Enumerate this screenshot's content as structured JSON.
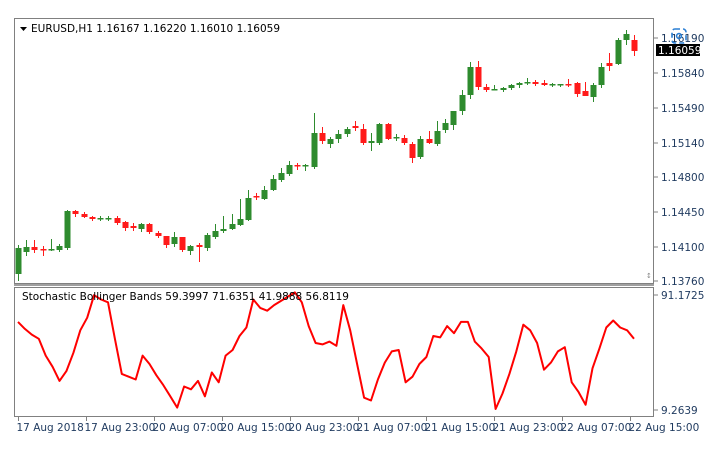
{
  "header": {
    "symbol": "EURUSD,H1",
    "open": "1.16167",
    "high": "1.16220",
    "low": "1.16010",
    "close": "1.16059",
    "label": "EURUSD,H1  1.16167 1.16220 1.16010 1.16059"
  },
  "indicator": {
    "label": "Stochastic Bollinger Bands 59.3997 71.6351 41.9888 56.8119",
    "name": "Stochastic Bollinger Bands",
    "values": [
      "59.3997",
      "71.6351",
      "41.9888",
      "56.8119"
    ],
    "axis_top": "91.1725",
    "axis_bottom": "9.2639"
  },
  "price_axis": {
    "ticks": [
      "1.16190",
      "1.15840",
      "1.15490",
      "1.15140",
      "1.14800",
      "1.14450",
      "1.14100",
      "1.13760"
    ],
    "current_price": "1.16059"
  },
  "time_axis": {
    "ticks": [
      "17 Aug 2018",
      "17 Aug 23:00",
      "20 Aug 07:00",
      "20 Aug 15:00",
      "20 Aug 23:00",
      "21 Aug 07:00",
      "21 Aug 15:00",
      "21 Aug 23:00",
      "22 Aug 07:00",
      "22 Aug 15:00"
    ]
  },
  "colors": {
    "bull": "#2e8b2e",
    "bear": "#ff1a1a",
    "indicator_line": "#ff0000",
    "axis_text": "#1f3a5f",
    "frame": "#808080",
    "price_tag_bg": "#000000",
    "price_tag_fg": "#ffffff"
  },
  "chart_data": [
    {
      "type": "candlestick",
      "title": "EURUSD,H1  1.16167 1.16220 1.16010 1.16059",
      "xlabel": "",
      "ylabel": "",
      "ylim": [
        1.1376,
        1.1619
      ],
      "grid": false,
      "x_tick_labels": [
        "17 Aug 2018",
        "17 Aug 23:00",
        "20 Aug 07:00",
        "20 Aug 15:00",
        "20 Aug 23:00",
        "21 Aug 07:00",
        "21 Aug 15:00",
        "21 Aug 23:00",
        "22 Aug 07:00",
        "22 Aug 15:00"
      ],
      "y_tick_labels": [
        "1.16190",
        "1.15840",
        "1.15490",
        "1.15140",
        "1.14800",
        "1.14450",
        "1.14100",
        "1.13760"
      ],
      "candles": [
        {
          "o": 1.1383,
          "h": 1.1412,
          "l": 1.1376,
          "c": 1.1409
        },
        {
          "o": 1.1405,
          "h": 1.1417,
          "l": 1.1401,
          "c": 1.141
        },
        {
          "o": 1.141,
          "h": 1.1417,
          "l": 1.1404,
          "c": 1.1407
        },
        {
          "o": 1.1408,
          "h": 1.1411,
          "l": 1.1401,
          "c": 1.1407
        },
        {
          "o": 1.1408,
          "h": 1.1418,
          "l": 1.1406,
          "c": 1.1408
        },
        {
          "o": 1.1407,
          "h": 1.1413,
          "l": 1.1405,
          "c": 1.1411
        },
        {
          "o": 1.1409,
          "h": 1.1447,
          "l": 1.1407,
          "c": 1.1446
        },
        {
          "o": 1.1446,
          "h": 1.1447,
          "l": 1.144,
          "c": 1.1443
        },
        {
          "o": 1.1443,
          "h": 1.1445,
          "l": 1.1439,
          "c": 1.144
        },
        {
          "o": 1.144,
          "h": 1.1441,
          "l": 1.1436,
          "c": 1.1438
        },
        {
          "o": 1.1438,
          "h": 1.1441,
          "l": 1.1436,
          "c": 1.1439
        },
        {
          "o": 1.1439,
          "h": 1.1441,
          "l": 1.1436,
          "c": 1.1439
        },
        {
          "o": 1.1439,
          "h": 1.1441,
          "l": 1.1432,
          "c": 1.1434
        },
        {
          "o": 1.1435,
          "h": 1.1436,
          "l": 1.1426,
          "c": 1.1429
        },
        {
          "o": 1.1431,
          "h": 1.1434,
          "l": 1.1426,
          "c": 1.1429
        },
        {
          "o": 1.1428,
          "h": 1.1434,
          "l": 1.1425,
          "c": 1.1433
        },
        {
          "o": 1.1433,
          "h": 1.1434,
          "l": 1.1423,
          "c": 1.1425
        },
        {
          "o": 1.1424,
          "h": 1.1426,
          "l": 1.1419,
          "c": 1.1421
        },
        {
          "o": 1.1421,
          "h": 1.1421,
          "l": 1.1409,
          "c": 1.1412
        },
        {
          "o": 1.1413,
          "h": 1.1425,
          "l": 1.141,
          "c": 1.142
        },
        {
          "o": 1.142,
          "h": 1.142,
          "l": 1.1405,
          "c": 1.1407
        },
        {
          "o": 1.1406,
          "h": 1.1412,
          "l": 1.1402,
          "c": 1.1411
        },
        {
          "o": 1.1412,
          "h": 1.1414,
          "l": 1.1395,
          "c": 1.141
        },
        {
          "o": 1.1409,
          "h": 1.1424,
          "l": 1.1406,
          "c": 1.1422
        },
        {
          "o": 1.142,
          "h": 1.1433,
          "l": 1.1418,
          "c": 1.1426
        },
        {
          "o": 1.1426,
          "h": 1.1441,
          "l": 1.1424,
          "c": 1.1428
        },
        {
          "o": 1.1428,
          "h": 1.1443,
          "l": 1.1427,
          "c": 1.1433
        },
        {
          "o": 1.1432,
          "h": 1.1458,
          "l": 1.1431,
          "c": 1.1438
        },
        {
          "o": 1.1437,
          "h": 1.1467,
          "l": 1.1436,
          "c": 1.1459
        },
        {
          "o": 1.1461,
          "h": 1.1464,
          "l": 1.1457,
          "c": 1.146
        },
        {
          "o": 1.1458,
          "h": 1.1471,
          "l": 1.1457,
          "c": 1.1467
        },
        {
          "o": 1.1467,
          "h": 1.1482,
          "l": 1.1466,
          "c": 1.1478
        },
        {
          "o": 1.1477,
          "h": 1.1489,
          "l": 1.1475,
          "c": 1.1484
        },
        {
          "o": 1.1483,
          "h": 1.1496,
          "l": 1.1481,
          "c": 1.1492
        },
        {
          "o": 1.1492,
          "h": 1.1494,
          "l": 1.1487,
          "c": 1.1491
        },
        {
          "o": 1.1491,
          "h": 1.1493,
          "l": 1.1486,
          "c": 1.1492
        },
        {
          "o": 1.149,
          "h": 1.1544,
          "l": 1.1488,
          "c": 1.1524
        },
        {
          "o": 1.1524,
          "h": 1.153,
          "l": 1.1513,
          "c": 1.1516
        },
        {
          "o": 1.1513,
          "h": 1.152,
          "l": 1.1509,
          "c": 1.1518
        },
        {
          "o": 1.1518,
          "h": 1.1527,
          "l": 1.1514,
          "c": 1.1523
        },
        {
          "o": 1.1523,
          "h": 1.153,
          "l": 1.152,
          "c": 1.1528
        },
        {
          "o": 1.1531,
          "h": 1.1536,
          "l": 1.1526,
          "c": 1.1529
        },
        {
          "o": 1.1528,
          "h": 1.1533,
          "l": 1.1512,
          "c": 1.1514
        },
        {
          "o": 1.1514,
          "h": 1.1524,
          "l": 1.1506,
          "c": 1.1516
        },
        {
          "o": 1.1514,
          "h": 1.1534,
          "l": 1.1512,
          "c": 1.1533
        },
        {
          "o": 1.1533,
          "h": 1.1534,
          "l": 1.1517,
          "c": 1.1518
        },
        {
          "o": 1.1519,
          "h": 1.1523,
          "l": 1.1516,
          "c": 1.152
        },
        {
          "o": 1.1519,
          "h": 1.1522,
          "l": 1.1512,
          "c": 1.1514
        },
        {
          "o": 1.1513,
          "h": 1.1515,
          "l": 1.1494,
          "c": 1.1499
        },
        {
          "o": 1.15,
          "h": 1.1521,
          "l": 1.1498,
          "c": 1.1518
        },
        {
          "o": 1.1518,
          "h": 1.1526,
          "l": 1.1513,
          "c": 1.1514
        },
        {
          "o": 1.1513,
          "h": 1.1536,
          "l": 1.1511,
          "c": 1.1526
        },
        {
          "o": 1.1527,
          "h": 1.1538,
          "l": 1.1524,
          "c": 1.1534
        },
        {
          "o": 1.1532,
          "h": 1.1544,
          "l": 1.1527,
          "c": 1.1546
        },
        {
          "o": 1.1546,
          "h": 1.1567,
          "l": 1.1542,
          "c": 1.1562
        },
        {
          "o": 1.1562,
          "h": 1.1595,
          "l": 1.1558,
          "c": 1.159
        },
        {
          "o": 1.159,
          "h": 1.1596,
          "l": 1.1567,
          "c": 1.157
        },
        {
          "o": 1.157,
          "h": 1.1573,
          "l": 1.1565,
          "c": 1.1567
        },
        {
          "o": 1.1568,
          "h": 1.1572,
          "l": 1.1567,
          "c": 1.1568
        },
        {
          "o": 1.1567,
          "h": 1.157,
          "l": 1.1565,
          "c": 1.1569
        },
        {
          "o": 1.1569,
          "h": 1.1573,
          "l": 1.1567,
          "c": 1.1572
        },
        {
          "o": 1.1572,
          "h": 1.1575,
          "l": 1.1569,
          "c": 1.1574
        },
        {
          "o": 1.1574,
          "h": 1.1579,
          "l": 1.1572,
          "c": 1.1575
        },
        {
          "o": 1.1575,
          "h": 1.1577,
          "l": 1.1571,
          "c": 1.1573
        },
        {
          "o": 1.1574,
          "h": 1.1577,
          "l": 1.1571,
          "c": 1.1572
        },
        {
          "o": 1.1572,
          "h": 1.1574,
          "l": 1.157,
          "c": 1.1573
        },
        {
          "o": 1.1573,
          "h": 1.1573,
          "l": 1.157,
          "c": 1.1573
        },
        {
          "o": 1.1573,
          "h": 1.1578,
          "l": 1.157,
          "c": 1.1572
        },
        {
          "o": 1.1574,
          "h": 1.1575,
          "l": 1.156,
          "c": 1.1563
        },
        {
          "o": 1.1566,
          "h": 1.1575,
          "l": 1.1562,
          "c": 1.1561
        },
        {
          "o": 1.156,
          "h": 1.1574,
          "l": 1.1555,
          "c": 1.1572
        },
        {
          "o": 1.1572,
          "h": 1.1594,
          "l": 1.1569,
          "c": 1.159
        },
        {
          "o": 1.1594,
          "h": 1.1604,
          "l": 1.1586,
          "c": 1.1591
        },
        {
          "o": 1.1593,
          "h": 1.1619,
          "l": 1.1592,
          "c": 1.1617
        },
        {
          "o": 1.1617,
          "h": 1.1627,
          "l": 1.1612,
          "c": 1.1623
        },
        {
          "o": 1.1617,
          "h": 1.1622,
          "l": 1.1601,
          "c": 1.1606
        }
      ]
    },
    {
      "type": "line",
      "title": "Stochastic Bollinger Bands 59.3997 71.6351 41.9888 56.8119",
      "ylim": [
        9.2639,
        91.1725
      ],
      "y_tick_labels": [
        "91.1725",
        "9.2639"
      ],
      "series": [
        {
          "name": "Stochastic Bollinger Bands",
          "values": [
            72,
            67,
            63,
            60,
            48,
            40,
            30,
            37,
            50,
            66,
            75,
            91,
            88,
            86,
            60,
            35,
            33,
            31,
            48,
            42,
            34,
            27,
            19,
            11,
            26,
            24,
            30,
            19,
            36,
            29,
            48,
            52,
            62,
            68,
            88,
            82,
            80,
            84,
            87,
            90,
            93,
            86,
            69,
            57,
            56,
            58,
            55,
            84,
            66,
            42,
            18,
            16,
            31,
            43,
            51,
            52,
            29,
            33,
            42,
            47,
            62,
            61,
            69,
            64,
            72,
            72,
            58,
            53,
            47,
            10,
            21,
            35,
            51,
            70,
            66,
            57,
            38,
            43,
            51,
            54,
            29,
            22,
            13,
            39,
            53,
            68,
            73,
            68,
            66,
            60
          ]
        }
      ]
    }
  ]
}
